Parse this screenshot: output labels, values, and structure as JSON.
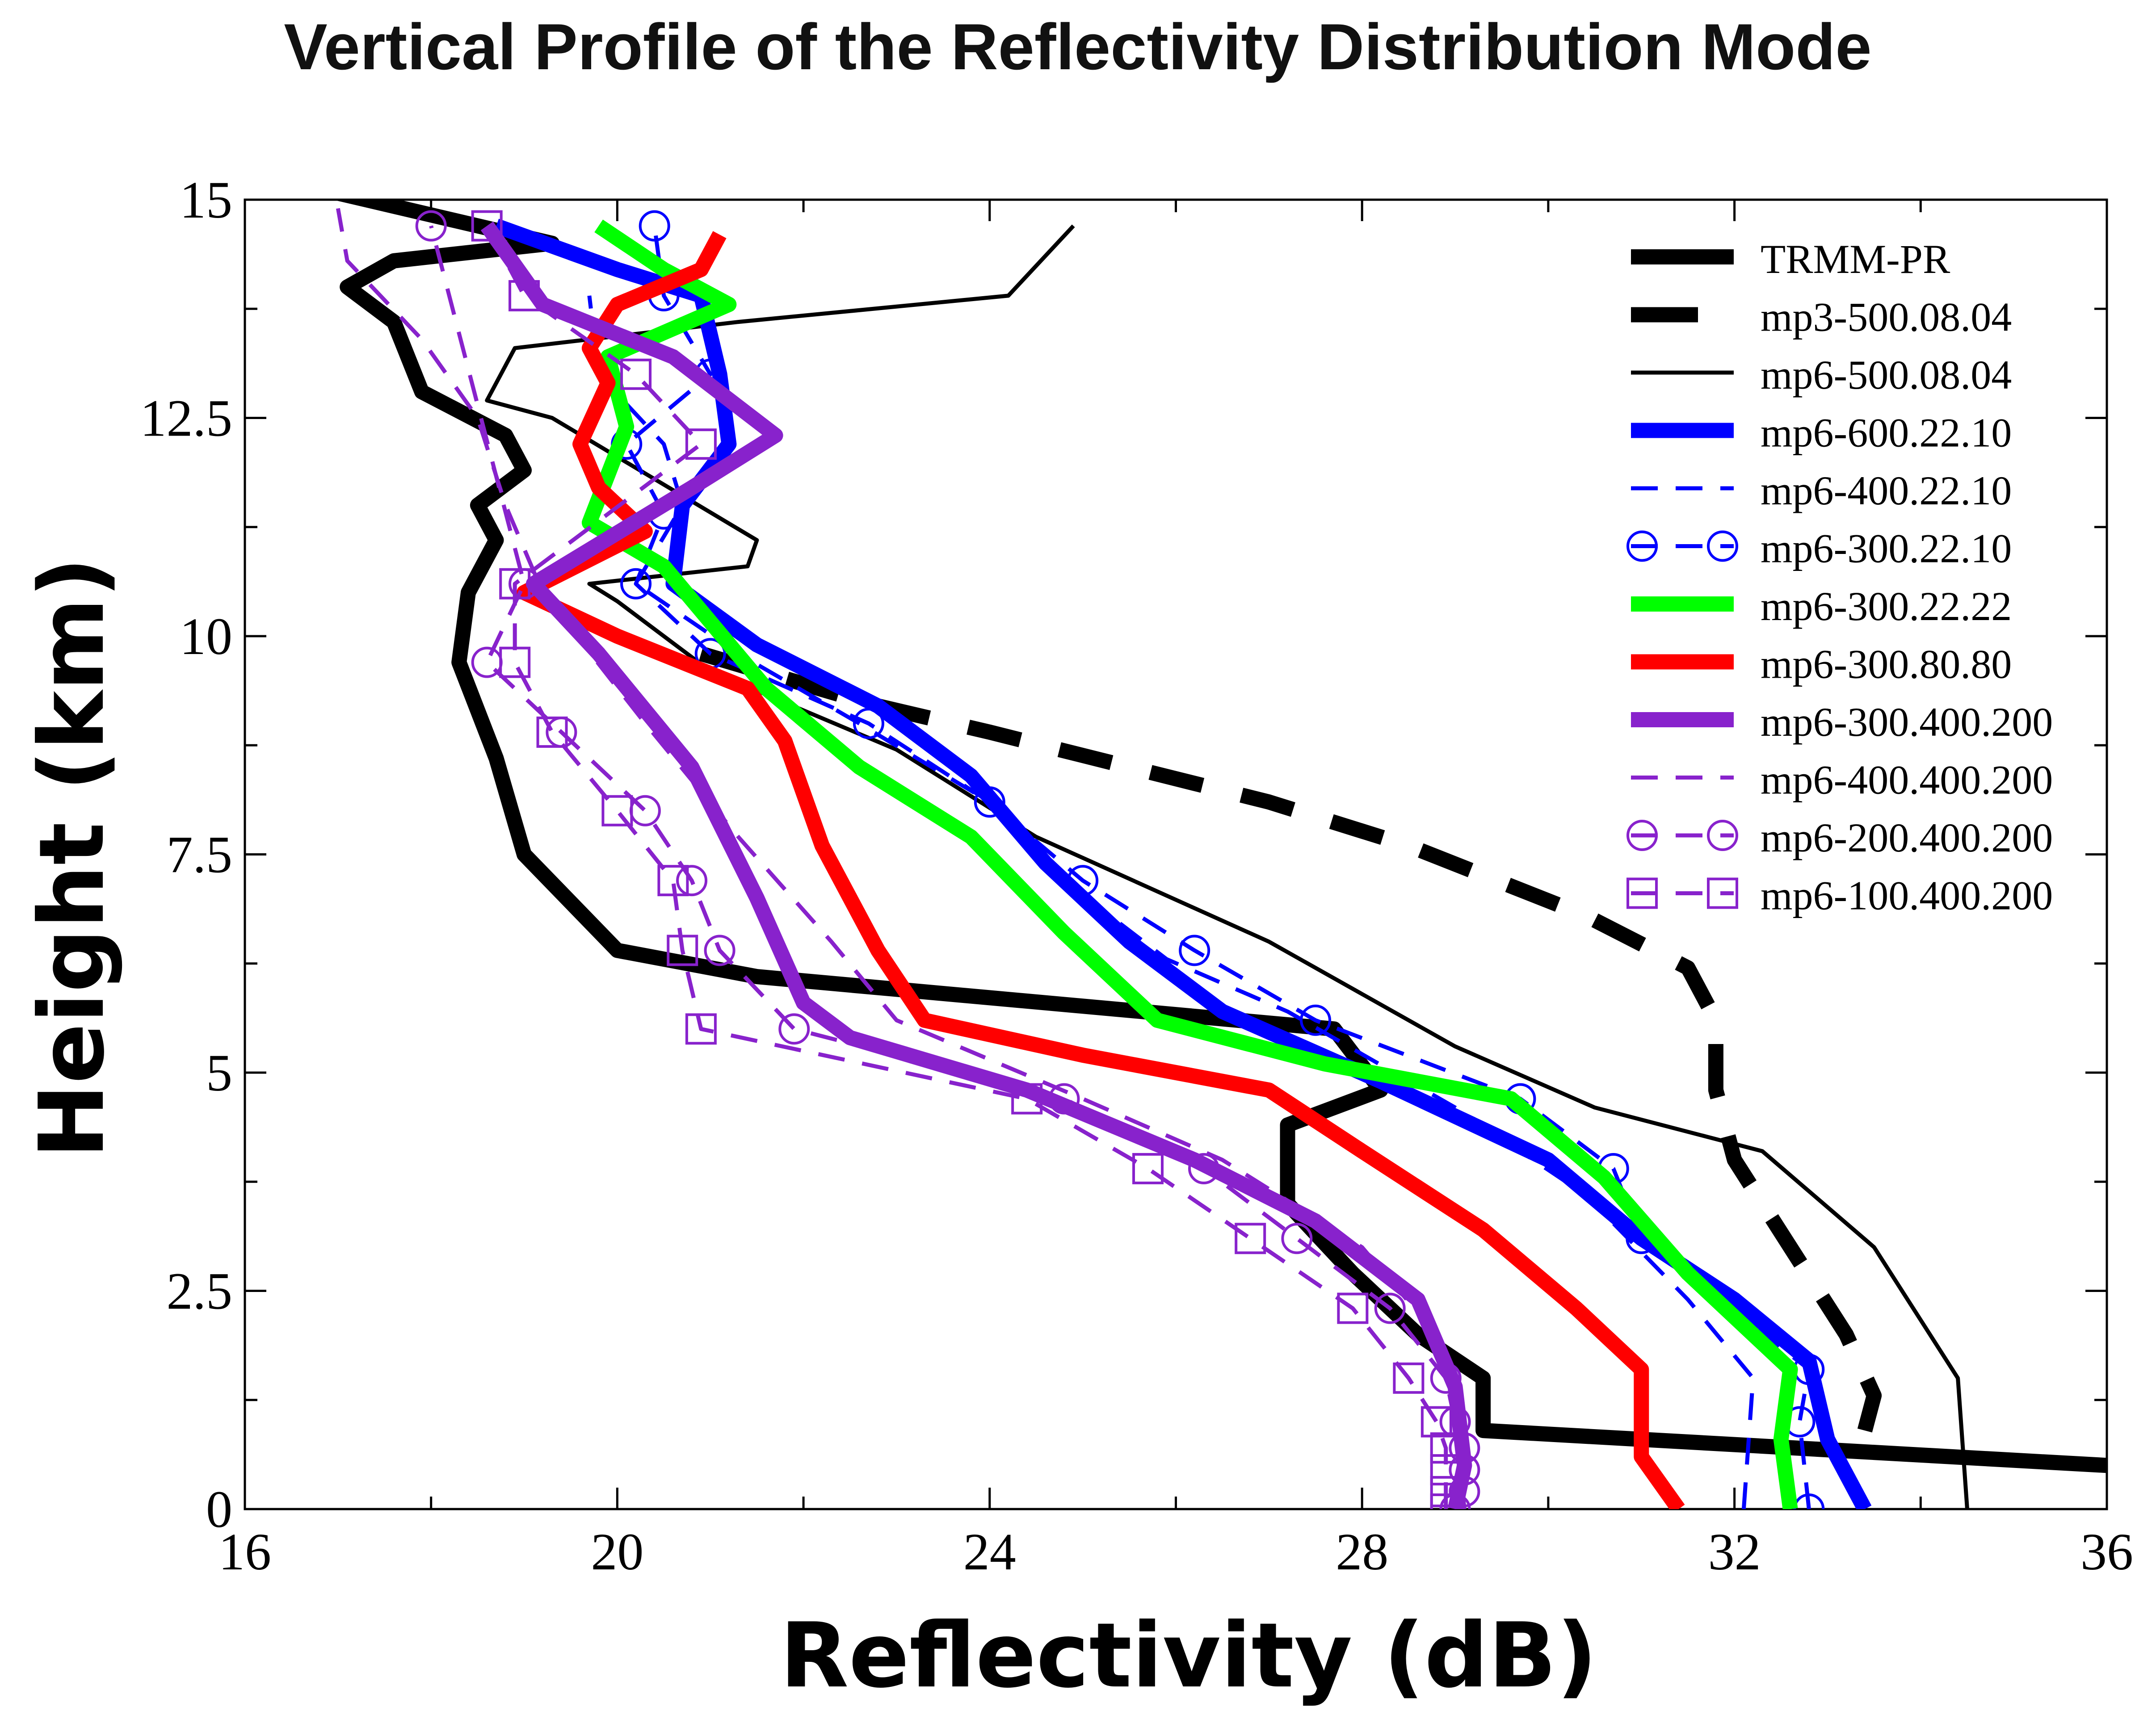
{
  "chart_data": {
    "type": "line",
    "title": "Vertical Profile of the Reflectivity Distribution Mode",
    "xlabel": "Reflectivity (dB)",
    "ylabel": "Height (km)",
    "xlim": [
      16,
      36
    ],
    "ylim": [
      0,
      15
    ],
    "xticks": [
      16,
      20,
      24,
      28,
      32,
      36
    ],
    "yticks": [
      0,
      2.5,
      5,
      7.5,
      10,
      12.5,
      15
    ],
    "xtick_labels": [
      "16",
      "20",
      "24",
      "28",
      "32",
      "36"
    ],
    "ytick_labels": [
      "0",
      "2.5",
      "5",
      "7.5",
      "10",
      "12.5",
      "15"
    ],
    "grid": false,
    "legend_position": "top-right",
    "series": [
      {
        "name": "TRMM-PR",
        "color": "#000000",
        "style": "solid",
        "weight": "heavy",
        "marker": "none",
        "points": [
          [
            36,
            0.5
          ],
          [
            29.3,
            0.9
          ],
          [
            29.3,
            1.5
          ],
          [
            28.6,
            2.0
          ],
          [
            27.9,
            2.7
          ],
          [
            27.2,
            3.5
          ],
          [
            27.2,
            4.4
          ],
          [
            28.2,
            4.8
          ],
          [
            27.7,
            5.5
          ],
          [
            21.5,
            6.1
          ],
          [
            20.0,
            6.4
          ],
          [
            19.0,
            7.5
          ],
          [
            18.7,
            8.6
          ],
          [
            18.3,
            9.7
          ],
          [
            18.4,
            10.5
          ],
          [
            18.7,
            11.1
          ],
          [
            18.5,
            11.5
          ],
          [
            19.0,
            11.9
          ],
          [
            18.8,
            12.3
          ],
          [
            17.9,
            12.8
          ],
          [
            17.6,
            13.6
          ],
          [
            17.1,
            14.0
          ],
          [
            17.6,
            14.3
          ],
          [
            19.3,
            14.5
          ],
          [
            17.3,
            15.0
          ],
          [
            16.9,
            15.1
          ]
        ]
      },
      {
        "name": "mp3-500.08.04",
        "color": "#000000",
        "style": "dashed",
        "weight": "heavy",
        "marker": "none",
        "points": [
          [
            33.4,
            0.9
          ],
          [
            33.5,
            1.3
          ],
          [
            33.2,
            2.0
          ],
          [
            32.6,
            3.0
          ],
          [
            32.0,
            4.0
          ],
          [
            31.8,
            4.8
          ],
          [
            31.8,
            5.6
          ],
          [
            31.5,
            6.2
          ],
          [
            30.4,
            6.8
          ],
          [
            28.5,
            7.6
          ],
          [
            27.0,
            8.1
          ],
          [
            25.5,
            8.5
          ],
          [
            24.0,
            8.9
          ],
          [
            22.8,
            9.2
          ],
          [
            20.9,
            9.8
          ]
        ]
      },
      {
        "name": "mp6-500.08.04",
        "color": "#000000",
        "style": "solid",
        "weight": "thin",
        "marker": "none",
        "points": [
          [
            34.5,
            0
          ],
          [
            34.4,
            1.5
          ],
          [
            33.5,
            3.0
          ],
          [
            32.3,
            4.1
          ],
          [
            30.5,
            4.6
          ],
          [
            29.0,
            5.3
          ],
          [
            27.0,
            6.5
          ],
          [
            24.5,
            7.7
          ],
          [
            23.0,
            8.7
          ],
          [
            21.0,
            9.6
          ],
          [
            20.0,
            10.4
          ],
          [
            19.7,
            10.6
          ],
          [
            21.4,
            10.8
          ],
          [
            21.5,
            11.1
          ],
          [
            19.3,
            12.5
          ],
          [
            18.6,
            12.7
          ],
          [
            18.9,
            13.3
          ],
          [
            21.3,
            13.6
          ],
          [
            24.2,
            13.9
          ],
          [
            24.9,
            14.7
          ]
        ]
      },
      {
        "name": "mp6-600.22.10",
        "color": "#0000ff",
        "style": "solid",
        "weight": "heavy",
        "marker": "none",
        "points": [
          [
            33.4,
            0
          ],
          [
            33.0,
            0.8
          ],
          [
            32.8,
            1.7
          ],
          [
            32.0,
            2.4
          ],
          [
            31.0,
            3.1
          ],
          [
            30.0,
            4.0
          ],
          [
            28.2,
            4.9
          ],
          [
            26.5,
            5.7
          ],
          [
            25.5,
            6.5
          ],
          [
            24.6,
            7.4
          ],
          [
            23.8,
            8.4
          ],
          [
            22.8,
            9.2
          ],
          [
            21.5,
            9.9
          ],
          [
            20.6,
            10.6
          ],
          [
            20.7,
            11.5
          ],
          [
            21.2,
            12.2
          ],
          [
            21.1,
            13.0
          ],
          [
            20.9,
            13.9
          ],
          [
            20.0,
            14.2
          ],
          [
            18.7,
            14.7
          ]
        ]
      },
      {
        "name": "mp6-400.22.10",
        "color": "#0000ff",
        "style": "dashed",
        "weight": "thin",
        "marker": "none",
        "points": [
          [
            32.1,
            0
          ],
          [
            32.2,
            1.5
          ],
          [
            31.5,
            2.4
          ],
          [
            30.4,
            3.6
          ],
          [
            29.0,
            4.6
          ],
          [
            27.2,
            5.7
          ],
          [
            25.9,
            6.3
          ],
          [
            24.8,
            7.2
          ],
          [
            24.0,
            8.1
          ],
          [
            22.6,
            9.0
          ],
          [
            21.3,
            9.8
          ],
          [
            20.2,
            10.6
          ],
          [
            20.7,
            11.5
          ],
          [
            20.5,
            12.2
          ],
          [
            19.8,
            13.0
          ],
          [
            19.7,
            13.9
          ]
        ]
      },
      {
        "name": "mp6-300.22.10",
        "color": "#0000ff",
        "style": "dashed",
        "weight": "thin",
        "marker": "circle",
        "points": [
          [
            32.8,
            0
          ],
          [
            32.7,
            1.0
          ],
          [
            32.8,
            1.6
          ],
          [
            31.0,
            3.1
          ],
          [
            30.7,
            3.9
          ],
          [
            29.7,
            4.7
          ],
          [
            27.5,
            5.6
          ],
          [
            26.2,
            6.4
          ],
          [
            25.0,
            7.2
          ],
          [
            24.0,
            8.1
          ],
          [
            22.7,
            9.0
          ],
          [
            21.0,
            9.8
          ],
          [
            20.2,
            10.6
          ],
          [
            20.5,
            11.4
          ],
          [
            20.1,
            12.2
          ],
          [
            21.0,
            13.0
          ],
          [
            20.5,
            13.9
          ],
          [
            20.4,
            14.7
          ]
        ]
      },
      {
        "name": "mp6-300.22.22",
        "color": "#00ff00",
        "style": "solid",
        "weight": "heavy",
        "marker": "none",
        "points": [
          [
            32.6,
            0
          ],
          [
            32.5,
            0.8
          ],
          [
            32.6,
            1.6
          ],
          [
            31.5,
            2.7
          ],
          [
            30.6,
            3.8
          ],
          [
            29.6,
            4.7
          ],
          [
            27.6,
            5.1
          ],
          [
            25.8,
            5.6
          ],
          [
            24.8,
            6.6
          ],
          [
            23.8,
            7.7
          ],
          [
            22.6,
            8.5
          ],
          [
            21.6,
            9.4
          ],
          [
            20.5,
            10.8
          ],
          [
            19.7,
            11.3
          ],
          [
            20.1,
            12.4
          ],
          [
            19.9,
            13.2
          ],
          [
            21.2,
            13.8
          ],
          [
            20.5,
            14.2
          ],
          [
            19.8,
            14.7
          ]
        ]
      },
      {
        "name": "mp6-300.80.80",
        "color": "#ff0000",
        "style": "solid",
        "weight": "heavy",
        "marker": "none",
        "points": [
          [
            31.4,
            0
          ],
          [
            31.0,
            0.6
          ],
          [
            31.0,
            1.6
          ],
          [
            30.3,
            2.3
          ],
          [
            29.3,
            3.2
          ],
          [
            28.0,
            4.1
          ],
          [
            27.0,
            4.8
          ],
          [
            25.0,
            5.2
          ],
          [
            23.3,
            5.6
          ],
          [
            22.8,
            6.4
          ],
          [
            22.2,
            7.6
          ],
          [
            21.8,
            8.8
          ],
          [
            21.4,
            9.4
          ],
          [
            20.0,
            10.0
          ],
          [
            19.0,
            10.5
          ],
          [
            20.3,
            11.2
          ],
          [
            19.8,
            11.7
          ],
          [
            19.6,
            12.2
          ],
          [
            19.9,
            12.9
          ],
          [
            19.7,
            13.3
          ],
          [
            20.0,
            13.8
          ],
          [
            20.9,
            14.2
          ],
          [
            21.1,
            14.6
          ]
        ]
      },
      {
        "name": "mp6-300.400.200",
        "color": "#8822cc",
        "style": "solid",
        "weight": "heavy",
        "marker": "none",
        "points": [
          [
            29.0,
            0
          ],
          [
            29.1,
            0.5
          ],
          [
            29.0,
            1.4
          ],
          [
            28.6,
            2.4
          ],
          [
            27.5,
            3.3
          ],
          [
            26.2,
            4.0
          ],
          [
            24.4,
            4.8
          ],
          [
            22.5,
            5.4
          ],
          [
            22.0,
            5.8
          ],
          [
            21.5,
            7.0
          ],
          [
            20.8,
            8.5
          ],
          [
            19.8,
            9.8
          ],
          [
            19.1,
            10.6
          ],
          [
            20.8,
            11.7
          ],
          [
            21.7,
            12.3
          ],
          [
            20.6,
            13.2
          ],
          [
            19.2,
            13.8
          ],
          [
            18.8,
            14.4
          ],
          [
            18.6,
            14.7
          ]
        ]
      },
      {
        "name": "mp6-400.400.200",
        "color": "#8822cc",
        "style": "dashed",
        "weight": "thin",
        "marker": "none",
        "points": [
          [
            29.1,
            0
          ],
          [
            29.0,
            1.0
          ],
          [
            28.8,
            2.0
          ],
          [
            28.0,
            3.0
          ],
          [
            26.5,
            4.0
          ],
          [
            25.0,
            4.7
          ],
          [
            23.0,
            5.6
          ],
          [
            22.3,
            6.5
          ],
          [
            21.3,
            7.7
          ],
          [
            20.3,
            9.0
          ],
          [
            19.2,
            10.5
          ],
          [
            18.8,
            11.5
          ],
          [
            18.5,
            12.5
          ],
          [
            17.9,
            13.4
          ],
          [
            17.1,
            14.3
          ],
          [
            17.0,
            14.9
          ]
        ]
      },
      {
        "name": "mp6-200.400.200",
        "color": "#8822cc",
        "style": "dashed",
        "weight": "thin",
        "marker": "circle",
        "points": [
          [
            29.0,
            0
          ],
          [
            29.1,
            0.2
          ],
          [
            29.1,
            0.45
          ],
          [
            29.1,
            0.7
          ],
          [
            29.0,
            1.0
          ],
          [
            28.9,
            1.5
          ],
          [
            28.3,
            2.3
          ],
          [
            27.3,
            3.1
          ],
          [
            26.3,
            3.9
          ],
          [
            24.8,
            4.7
          ],
          [
            21.9,
            5.5
          ],
          [
            21.1,
            6.4
          ],
          [
            20.8,
            7.2
          ],
          [
            20.3,
            8.0
          ],
          [
            19.4,
            8.9
          ],
          [
            18.6,
            9.7
          ],
          [
            19.0,
            10.6
          ],
          [
            18.0,
            14.7
          ]
        ]
      },
      {
        "name": "mp6-100.400.200",
        "color": "#8822cc",
        "style": "dashed",
        "weight": "thin",
        "marker": "square",
        "points": [
          [
            28.9,
            0
          ],
          [
            28.9,
            0.2
          ],
          [
            28.9,
            0.45
          ],
          [
            28.9,
            0.7
          ],
          [
            28.8,
            1.0
          ],
          [
            28.5,
            1.5
          ],
          [
            27.9,
            2.3
          ],
          [
            26.8,
            3.1
          ],
          [
            25.7,
            3.9
          ],
          [
            24.4,
            4.7
          ],
          [
            20.9,
            5.5
          ],
          [
            20.7,
            6.4
          ],
          [
            20.6,
            7.2
          ],
          [
            20.0,
            8.0
          ],
          [
            19.3,
            8.9
          ],
          [
            18.9,
            9.7
          ],
          [
            18.9,
            10.6
          ],
          [
            20.9,
            12.2
          ],
          [
            20.2,
            13.0
          ],
          [
            19.0,
            13.9
          ],
          [
            18.6,
            14.7
          ]
        ]
      }
    ]
  }
}
